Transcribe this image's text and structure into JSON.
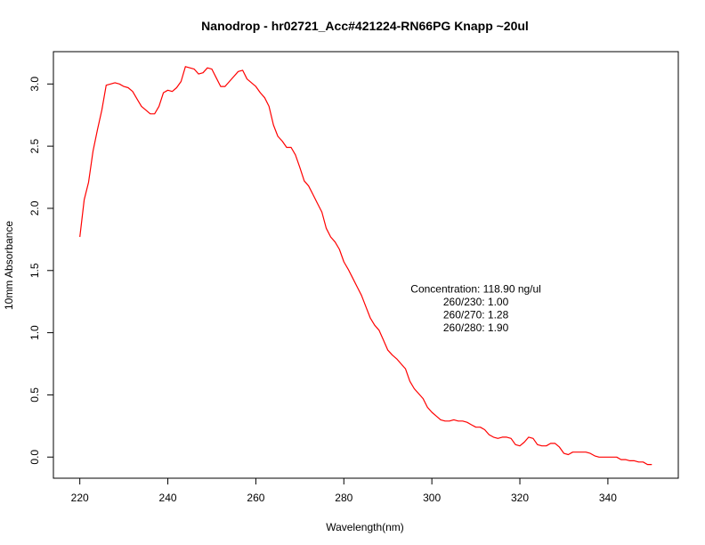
{
  "chart_data": {
    "type": "line",
    "title": "Nanodrop - hr02721_Acc#421224-RN66PG Knapp ~20ul",
    "xlabel": "Wavelength(nm)",
    "ylabel": "10mm Absorbance",
    "xlim": [
      214,
      356
    ],
    "ylim": [
      -0.17,
      3.26
    ],
    "xticks": [
      220,
      240,
      260,
      280,
      300,
      320,
      340
    ],
    "yticks": [
      0.0,
      0.5,
      1.0,
      1.5,
      2.0,
      2.5,
      3.0
    ],
    "xtick_labels": [
      "220",
      "240",
      "260",
      "280",
      "300",
      "320",
      "340"
    ],
    "ytick_labels": [
      "0.0",
      "0.5",
      "1.0",
      "1.5",
      "2.0",
      "2.5",
      "3.0"
    ],
    "grid": false,
    "series": [
      {
        "color": "#ff0000",
        "x": [
          220,
          221,
          222,
          223,
          224,
          225,
          226,
          227,
          228,
          229,
          230,
          231,
          232,
          233,
          234,
          235,
          236,
          237,
          238,
          239,
          240,
          241,
          242,
          243,
          244,
          245,
          246,
          247,
          248,
          249,
          250,
          251,
          252,
          253,
          254,
          255,
          256,
          257,
          258,
          259,
          260,
          261,
          262,
          263,
          264,
          265,
          266,
          267,
          268,
          269,
          270,
          271,
          272,
          273,
          274,
          275,
          276,
          277,
          278,
          279,
          280,
          281,
          282,
          283,
          284,
          285,
          286,
          287,
          288,
          289,
          290,
          291,
          292,
          293,
          294,
          295,
          296,
          297,
          298,
          299,
          300,
          301,
          302,
          303,
          304,
          305,
          306,
          307,
          308,
          309,
          310,
          311,
          312,
          313,
          314,
          315,
          316,
          317,
          318,
          319,
          320,
          321,
          322,
          323,
          324,
          325,
          326,
          327,
          328,
          329,
          330,
          331,
          332,
          333,
          334,
          335,
          336,
          337,
          338,
          339,
          340,
          341,
          342,
          343,
          344,
          345,
          346,
          347,
          348,
          349,
          350
        ],
        "y": [
          1.77,
          2.07,
          2.21,
          2.46,
          2.63,
          2.79,
          2.99,
          3.0,
          3.01,
          3.0,
          2.98,
          2.97,
          2.94,
          2.88,
          2.82,
          2.79,
          2.76,
          2.76,
          2.82,
          2.93,
          2.95,
          2.94,
          2.97,
          3.02,
          3.14,
          3.13,
          3.12,
          3.08,
          3.09,
          3.13,
          3.12,
          3.05,
          2.98,
          2.98,
          3.02,
          3.06,
          3.1,
          3.11,
          3.04,
          3.01,
          2.98,
          2.93,
          2.89,
          2.82,
          2.67,
          2.58,
          2.54,
          2.49,
          2.49,
          2.43,
          2.33,
          2.22,
          2.18,
          2.11,
          2.04,
          1.97,
          1.84,
          1.77,
          1.73,
          1.67,
          1.57,
          1.51,
          1.44,
          1.37,
          1.3,
          1.21,
          1.12,
          1.06,
          1.02,
          0.94,
          0.86,
          0.82,
          0.79,
          0.75,
          0.71,
          0.61,
          0.55,
          0.51,
          0.47,
          0.4,
          0.36,
          0.33,
          0.3,
          0.29,
          0.29,
          0.3,
          0.29,
          0.29,
          0.28,
          0.26,
          0.24,
          0.24,
          0.22,
          0.18,
          0.16,
          0.15,
          0.16,
          0.16,
          0.15,
          0.1,
          0.09,
          0.12,
          0.16,
          0.15,
          0.1,
          0.09,
          0.09,
          0.11,
          0.11,
          0.08,
          0.03,
          0.02,
          0.04,
          0.04,
          0.04,
          0.04,
          0.03,
          0.01,
          0.0,
          0.0,
          0.0,
          0.0,
          0.0,
          -0.02,
          -0.02,
          -0.03,
          -0.03,
          -0.04,
          -0.04,
          -0.06,
          -0.06
        ]
      }
    ],
    "annotation": {
      "x": 310,
      "y_top": 1.35,
      "lines": [
        "Concentration: 118.90 ng/ul",
        "260/230: 1.00",
        "260/270: 1.28",
        "260/280: 1.90"
      ]
    }
  }
}
